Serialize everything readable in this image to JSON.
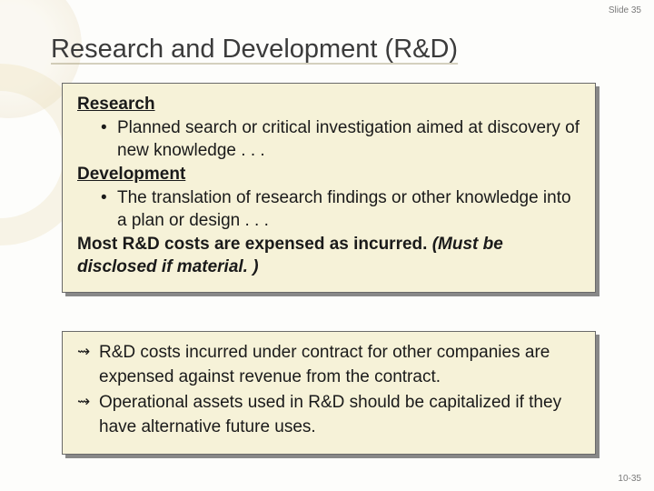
{
  "slide": {
    "top_label": "Slide 35",
    "title": "Research and Development (R&D)",
    "bottom_page": "10-35"
  },
  "box1": {
    "h1": "Research",
    "b1": "Planned search or critical investigation aimed at discovery of new knowledge . . .",
    "h2": "Development",
    "b2": "The translation of research findings or other knowledge into a plan or design . . .",
    "bold1": "Most R&D costs are expensed as incurred. ",
    "italic1": "(Must be disclosed if material. )"
  },
  "box2": {
    "p1": "R&D costs incurred under contract for other companies are expensed against revenue from the contract.",
    "p2": "Operational assets used in R&D should be capitalized if they have alternative future uses."
  },
  "colors": {
    "box_bg": "#f6f2d8",
    "shadow": "#888888",
    "text": "#1a1a1a"
  }
}
